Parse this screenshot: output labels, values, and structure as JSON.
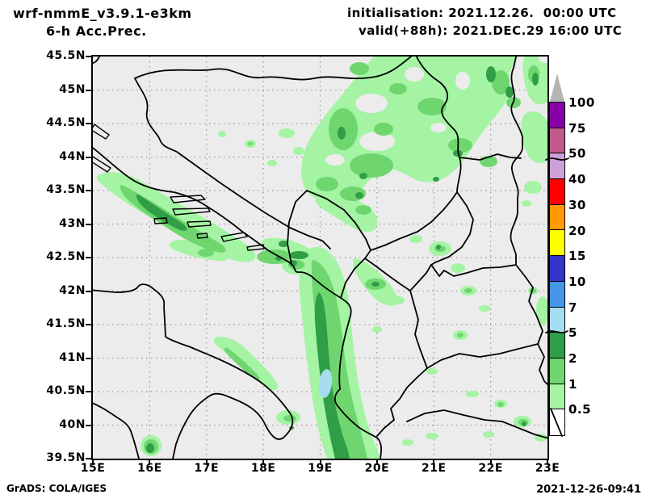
{
  "header": {
    "model": "wrf-nmmE_v3.9.1-e3km",
    "product": "6-h Acc.Prec.",
    "initialisation": "initialisation: 2021.12.26.  00:00 UTC",
    "valid": "valid(+88h): 2021.DEC.29 16:00 UTC"
  },
  "footer": {
    "credit": "GrADS: COLA/IGES",
    "timestamp": "2021-12-26-09:41"
  },
  "axes": {
    "lat_labels": [
      "45.5N",
      "45N",
      "44.5N",
      "44N",
      "43.5N",
      "43N",
      "42.5N",
      "42N",
      "41.5N",
      "41N",
      "40.5N",
      "40N",
      "39.5N"
    ],
    "lon_labels": [
      "15E",
      "16E",
      "17E",
      "18E",
      "19E",
      "20E",
      "21E",
      "22E",
      "23E"
    ]
  },
  "colorbar": {
    "levels": [
      "100",
      "75",
      "50",
      "40",
      "30",
      "20",
      "15",
      "10",
      "7",
      "5",
      "2",
      "1",
      "0.5"
    ],
    "colors": [
      "#8a00a8",
      "#c05a8c",
      "#cda0d7",
      "#ff0000",
      "#ff9a00",
      "#ffff00",
      "#3434c8",
      "#4596e6",
      "#a5dcf0",
      "#2f9e47",
      "#6fd66f",
      "#a4f4a4"
    ],
    "overflow_color": "#b4b4b4",
    "underflow_color": "#ffffff"
  },
  "map": {
    "background": "#ececec",
    "grid_color": "#999999",
    "line_color": "#000000"
  },
  "chart_data": {
    "type": "heatmap",
    "title": "wrf-nmmE_v3.9.1-e3km 6-h Acc.Prec.",
    "initialisation": "2021.12.26. 00:00 UTC",
    "valid": "2021.DEC.29 16:00 UTC (+88h)",
    "lon_range": [
      15,
      23
    ],
    "lat_range": [
      39.5,
      45.5
    ],
    "contour_levels": [
      0.5,
      1,
      2,
      5,
      7,
      10,
      15,
      20,
      30,
      40,
      50,
      75,
      100
    ],
    "features": [
      {
        "area": "Dalmatian coast 15.3-17.8E / 42.6-43.8N",
        "value_range": "0.5-5"
      },
      {
        "area": "Serbia / N Balkans 18.2-23E / 43.5-45.5N",
        "value_range": "0.5-5"
      },
      {
        "area": "Albanian coast band 18.8-19.8E / 39.5-42.3N",
        "value_range": "0.5-7",
        "max_patch": "5-7 near 19.3E 40.6N"
      },
      {
        "area": "Adriatic streak 17.2-18.3E / 41.6-42.3N",
        "value_range": "0.5-2"
      },
      {
        "area": "scattered blobs Montenegro/Kosovo/Macedonia/Greece",
        "value_range": "0.5-5"
      }
    ]
  }
}
